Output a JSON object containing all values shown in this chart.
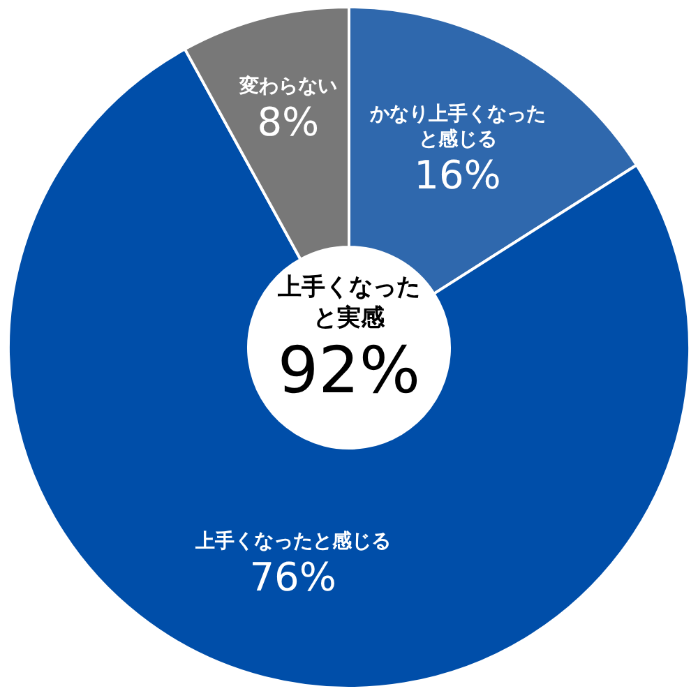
{
  "chart_data": {
    "type": "donut",
    "categories": [
      "かなり上手くなったと感じる",
      "上手くなったと感じる",
      "変わらない"
    ],
    "values": [
      16,
      76,
      8
    ],
    "colors": [
      "#2f68ad",
      "#004ea9",
      "#787878"
    ],
    "value_labels": [
      "16%",
      "76%",
      "8%"
    ],
    "annotations": [
      "上手くなったと実感",
      "92%"
    ]
  }
}
